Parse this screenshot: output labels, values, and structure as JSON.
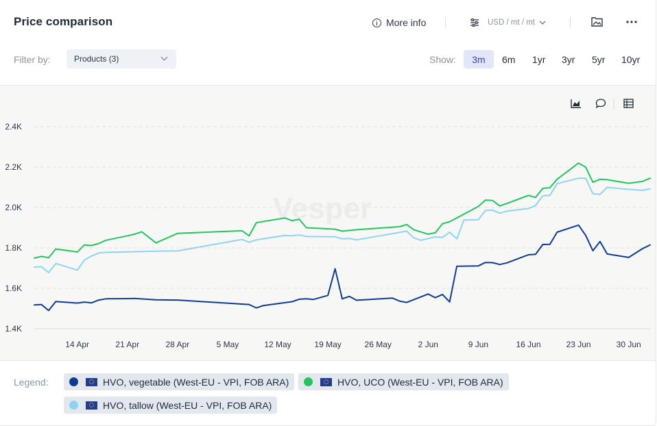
{
  "header": {
    "title": "Price comparison",
    "more_info": "More info",
    "unit_selector": "USD / mt / mt"
  },
  "filters": {
    "label": "Filter by:",
    "products": "Products (3)"
  },
  "range": {
    "label": "Show:",
    "options": [
      "3m",
      "6m",
      "1yr",
      "3yr",
      "5yr",
      "10yr"
    ],
    "active": "3m"
  },
  "watermark": "Vesper",
  "legend": {
    "label": "Legend:",
    "items": [
      {
        "name": "HVO, vegetable (West-EU - VPI, FOB ARA)",
        "color": "#0d3b94"
      },
      {
        "name": "HVO, UCO (West-EU - VPI, FOB ARA)",
        "color": "#22c55e"
      },
      {
        "name": "HVO, tallow (West-EU - VPI, FOB ARA)",
        "color": "#8fd3f4"
      }
    ]
  },
  "icons": [
    "more-info-icon",
    "sliders-icon",
    "image-icon",
    "more-icon",
    "area-chart-icon",
    "comment-icon",
    "table-icon"
  ],
  "chart_data": {
    "type": "line",
    "title": "",
    "xlabel": "",
    "ylabel": "",
    "x_ticks": [
      "14 Apr",
      "21 Apr",
      "28 Apr",
      "5 May",
      "12 May",
      "19 May",
      "26 May",
      "2 Jun",
      "9 Jun",
      "16 Jun",
      "23 Jun",
      "30 Jun"
    ],
    "y_ticks": [
      "1.4K",
      "1.6K",
      "1.8K",
      "2.0K",
      "2.2K",
      "2.4K"
    ],
    "x_range": [
      "2025-04-08",
      "2025-07-03"
    ],
    "ylim": [
      1400,
      2400
    ],
    "grid": true,
    "legend_position": "bottom",
    "series": [
      {
        "name": "HVO, vegetable (West-EU - VPI, FOB ARA)",
        "color": "#0d3b94",
        "points": [
          [
            "2025-04-08",
            1518
          ],
          [
            "2025-04-09",
            1520
          ],
          [
            "2025-04-10",
            1490
          ],
          [
            "2025-04-11",
            1535
          ],
          [
            "2025-04-14",
            1527
          ],
          [
            "2025-04-15",
            1532
          ],
          [
            "2025-04-16",
            1528
          ],
          [
            "2025-04-17",
            1542
          ],
          [
            "2025-04-18",
            1548
          ],
          [
            "2025-04-21",
            1549
          ],
          [
            "2025-04-22",
            1550
          ],
          [
            "2025-04-25",
            1543
          ],
          [
            "2025-04-28",
            1542
          ],
          [
            "2025-05-08",
            1520
          ],
          [
            "2025-05-09",
            1503
          ],
          [
            "2025-05-10",
            1515
          ],
          [
            "2025-05-14",
            1534
          ],
          [
            "2025-05-15",
            1546
          ],
          [
            "2025-05-16",
            1548
          ],
          [
            "2025-05-17",
            1545
          ],
          [
            "2025-05-19",
            1565
          ],
          [
            "2025-05-20",
            1697
          ],
          [
            "2025-05-21",
            1548
          ],
          [
            "2025-05-22",
            1560
          ],
          [
            "2025-05-23",
            1541
          ],
          [
            "2025-05-28",
            1552
          ],
          [
            "2025-05-29",
            1537
          ],
          [
            "2025-05-30",
            1530
          ],
          [
            "2025-06-02",
            1572
          ],
          [
            "2025-06-03",
            1554
          ],
          [
            "2025-06-04",
            1570
          ],
          [
            "2025-06-05",
            1533
          ],
          [
            "2025-06-06",
            1709
          ],
          [
            "2025-06-09",
            1711
          ],
          [
            "2025-06-10",
            1728
          ],
          [
            "2025-06-11",
            1727
          ],
          [
            "2025-06-12",
            1718
          ],
          [
            "2025-06-13",
            1726
          ],
          [
            "2025-06-16",
            1766
          ],
          [
            "2025-06-17",
            1768
          ],
          [
            "2025-06-18",
            1817
          ],
          [
            "2025-06-19",
            1818
          ],
          [
            "2025-06-20",
            1878
          ],
          [
            "2025-06-23",
            1913
          ],
          [
            "2025-06-24",
            1862
          ],
          [
            "2025-06-25",
            1786
          ],
          [
            "2025-06-26",
            1832
          ],
          [
            "2025-06-27",
            1770
          ],
          [
            "2025-06-30",
            1753
          ],
          [
            "2025-07-02",
            1798
          ],
          [
            "2025-07-03",
            1815
          ]
        ]
      },
      {
        "name": "HVO, UCO (West-EU - VPI, FOB ARA)",
        "color": "#22c55e",
        "points": [
          [
            "2025-04-08",
            1750
          ],
          [
            "2025-04-09",
            1758
          ],
          [
            "2025-04-10",
            1752
          ],
          [
            "2025-04-11",
            1795
          ],
          [
            "2025-04-14",
            1780
          ],
          [
            "2025-04-15",
            1815
          ],
          [
            "2025-04-16",
            1812
          ],
          [
            "2025-04-17",
            1822
          ],
          [
            "2025-04-18",
            1838
          ],
          [
            "2025-04-21",
            1860
          ],
          [
            "2025-04-22",
            1868
          ],
          [
            "2025-04-23",
            1880
          ],
          [
            "2025-04-25",
            1825
          ],
          [
            "2025-04-28",
            1872
          ],
          [
            "2025-05-07",
            1885
          ],
          [
            "2025-05-08",
            1860
          ],
          [
            "2025-05-09",
            1925
          ],
          [
            "2025-05-13",
            1948
          ],
          [
            "2025-05-14",
            1935
          ],
          [
            "2025-05-15",
            1942
          ],
          [
            "2025-05-16",
            1900
          ],
          [
            "2025-05-20",
            1893
          ],
          [
            "2025-05-21",
            1883
          ],
          [
            "2025-05-23",
            1890
          ],
          [
            "2025-05-29",
            1905
          ],
          [
            "2025-05-30",
            1916
          ],
          [
            "2025-05-31",
            1890
          ],
          [
            "2025-06-02",
            1868
          ],
          [
            "2025-06-03",
            1875
          ],
          [
            "2025-06-04",
            1920
          ],
          [
            "2025-06-05",
            1930
          ],
          [
            "2025-06-09",
            2005
          ],
          [
            "2025-06-10",
            2037
          ],
          [
            "2025-06-11",
            2035
          ],
          [
            "2025-06-12",
            2008
          ],
          [
            "2025-06-13",
            2020
          ],
          [
            "2025-06-16",
            2060
          ],
          [
            "2025-06-17",
            2050
          ],
          [
            "2025-06-18",
            2095
          ],
          [
            "2025-06-19",
            2098
          ],
          [
            "2025-06-20",
            2140
          ],
          [
            "2025-06-23",
            2220
          ],
          [
            "2025-06-24",
            2200
          ],
          [
            "2025-06-25",
            2125
          ],
          [
            "2025-06-26",
            2140
          ],
          [
            "2025-06-27",
            2138
          ],
          [
            "2025-06-30",
            2120
          ],
          [
            "2025-07-02",
            2130
          ],
          [
            "2025-07-03",
            2145
          ]
        ]
      },
      {
        "name": "HVO, tallow (West-EU - VPI, FOB ARA)",
        "color": "#8fd3f4",
        "points": [
          [
            "2025-04-08",
            1705
          ],
          [
            "2025-04-09",
            1707
          ],
          [
            "2025-04-10",
            1678
          ],
          [
            "2025-04-11",
            1723
          ],
          [
            "2025-04-14",
            1690
          ],
          [
            "2025-04-15",
            1740
          ],
          [
            "2025-04-16",
            1760
          ],
          [
            "2025-04-17",
            1775
          ],
          [
            "2025-04-18",
            1778
          ],
          [
            "2025-04-25",
            1784
          ],
          [
            "2025-04-28",
            1785
          ],
          [
            "2025-05-07",
            1842
          ],
          [
            "2025-05-08",
            1828
          ],
          [
            "2025-05-09",
            1840
          ],
          [
            "2025-05-13",
            1862
          ],
          [
            "2025-05-14",
            1860
          ],
          [
            "2025-05-15",
            1864
          ],
          [
            "2025-05-16",
            1857
          ],
          [
            "2025-05-20",
            1855
          ],
          [
            "2025-05-21",
            1845
          ],
          [
            "2025-05-22",
            1847
          ],
          [
            "2025-05-23",
            1840
          ],
          [
            "2025-05-30",
            1883
          ],
          [
            "2025-05-31",
            1850
          ],
          [
            "2025-06-01",
            1838
          ],
          [
            "2025-06-03",
            1855
          ],
          [
            "2025-06-04",
            1852
          ],
          [
            "2025-06-05",
            1878
          ],
          [
            "2025-06-06",
            1845
          ],
          [
            "2025-06-07",
            1938
          ],
          [
            "2025-06-09",
            1940
          ],
          [
            "2025-06-10",
            1985
          ],
          [
            "2025-06-11",
            1987
          ],
          [
            "2025-06-12",
            1972
          ],
          [
            "2025-06-13",
            1982
          ],
          [
            "2025-06-16",
            1995
          ],
          [
            "2025-06-17",
            2010
          ],
          [
            "2025-06-18",
            2058
          ],
          [
            "2025-06-19",
            2060
          ],
          [
            "2025-06-20",
            2118
          ],
          [
            "2025-06-23",
            2145
          ],
          [
            "2025-06-24",
            2145
          ],
          [
            "2025-06-25",
            2068
          ],
          [
            "2025-06-26",
            2065
          ],
          [
            "2025-06-27",
            2100
          ],
          [
            "2025-06-30",
            2090
          ],
          [
            "2025-07-02",
            2085
          ],
          [
            "2025-07-03",
            2093
          ]
        ]
      }
    ]
  }
}
